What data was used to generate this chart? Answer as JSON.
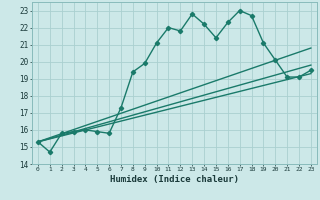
{
  "xlabel": "Humidex (Indice chaleur)",
  "ylabel": "",
  "bg_color": "#cce8e8",
  "grid_color": "#aad0d0",
  "line_color": "#1a7a6a",
  "xlim": [
    -0.5,
    23.5
  ],
  "ylim": [
    14,
    23.5
  ],
  "yticks": [
    14,
    15,
    16,
    17,
    18,
    19,
    20,
    21,
    22,
    23
  ],
  "xticks": [
    0,
    1,
    2,
    3,
    4,
    5,
    6,
    7,
    8,
    9,
    10,
    11,
    12,
    13,
    14,
    15,
    16,
    17,
    18,
    19,
    20,
    21,
    22,
    23
  ],
  "series": [
    {
      "x": [
        0,
        1,
        2,
        3,
        4,
        5,
        6,
        7,
        8,
        9,
        10,
        11,
        12,
        13,
        14,
        15,
        16,
        17,
        18,
        19,
        20,
        21,
        22,
        23
      ],
      "y": [
        15.3,
        14.7,
        15.8,
        15.9,
        16.0,
        15.9,
        15.8,
        17.3,
        19.4,
        19.9,
        21.1,
        22.0,
        21.8,
        22.8,
        22.2,
        21.4,
        22.3,
        23.0,
        22.7,
        21.1,
        20.1,
        19.1,
        19.1,
        19.5
      ],
      "marker": "D",
      "markersize": 2.2,
      "linewidth": 1.0
    },
    {
      "x": [
        0,
        23
      ],
      "y": [
        15.3,
        19.3
      ],
      "marker": null,
      "linewidth": 1.0
    },
    {
      "x": [
        0,
        23
      ],
      "y": [
        15.3,
        19.8
      ],
      "marker": null,
      "linewidth": 1.0
    },
    {
      "x": [
        0,
        23
      ],
      "y": [
        15.3,
        20.8
      ],
      "marker": null,
      "linewidth": 1.0
    }
  ]
}
